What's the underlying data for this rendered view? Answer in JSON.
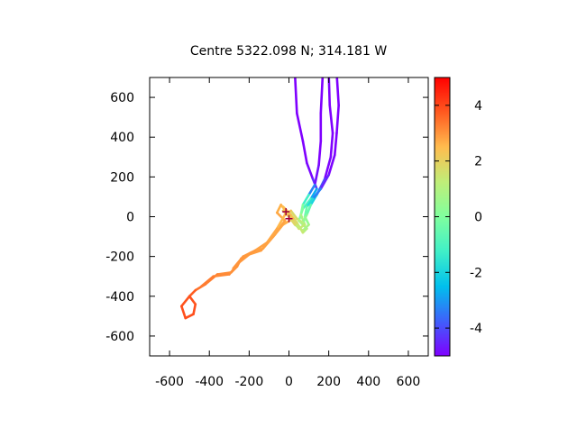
{
  "chart_data": {
    "type": "line",
    "title": "Centre 5322.098 N; 314.181  W",
    "xlabel": "",
    "ylabel": "",
    "xlim": [
      -700,
      700
    ],
    "ylim": [
      -700,
      700
    ],
    "xticks": [
      "-600",
      "-400",
      "-200",
      "0",
      "200",
      "400",
      "600"
    ],
    "yticks": [
      "-600",
      "-400",
      "-200",
      "0",
      "200",
      "400",
      "600"
    ],
    "grid": false,
    "legend": "none",
    "colorbar": {
      "range": [
        -5,
        5
      ],
      "ticks": [
        "-4",
        "-2",
        "0",
        "2",
        "4"
      ],
      "palette": [
        "#7f00ff",
        "#3f60fb",
        "#00c0ed",
        "#40f0c8",
        "#80ff9e",
        "#c0ee78",
        "#ffbc4e",
        "#ff5a20",
        "#ff0000"
      ]
    },
    "markers": [
      {
        "x": -15,
        "y": 25,
        "color": "#a0003c"
      },
      {
        "x": 0,
        "y": -10,
        "color": "#a0003c"
      }
    ],
    "series": [
      {
        "points": [
          [
            30,
            720,
            -5
          ],
          [
            40,
            520,
            -5
          ],
          [
            70,
            380,
            -5
          ],
          [
            90,
            270,
            -5
          ],
          [
            120,
            190,
            -4.8
          ],
          [
            140,
            140,
            -4
          ],
          [
            110,
            90,
            -1.5
          ],
          [
            70,
            40,
            -0.5
          ],
          [
            50,
            -20,
            0.5
          ],
          [
            90,
            -60,
            1
          ],
          [
            70,
            -80,
            1.2
          ],
          [
            40,
            -30,
            1.6
          ],
          [
            10,
            10,
            2
          ],
          [
            -30,
            50,
            2.3
          ],
          [
            -10,
            30,
            2.5
          ],
          [
            20,
            -10,
            2.6
          ],
          [
            -30,
            -40,
            2.7
          ],
          [
            -70,
            -90,
            2.8
          ],
          [
            -130,
            -160,
            2.8
          ],
          [
            -190,
            -180,
            2.9
          ],
          [
            -240,
            -210,
            2.9
          ],
          [
            -260,
            -250,
            3
          ],
          [
            -290,
            -280,
            3
          ],
          [
            -360,
            -290,
            3.2
          ],
          [
            -420,
            -340,
            3.3
          ],
          [
            -470,
            -370,
            3.6
          ],
          [
            -500,
            -400,
            3.8
          ],
          [
            -540,
            -450,
            3.9
          ],
          [
            -520,
            -510,
            3.9
          ],
          [
            -480,
            -490,
            3.9
          ],
          [
            -470,
            -440,
            3.9
          ],
          [
            -500,
            -400,
            3.8
          ]
        ]
      },
      {
        "points": [
          [
            170,
            720,
            -5
          ],
          [
            160,
            520,
            -5
          ],
          [
            160,
            380,
            -5
          ],
          [
            150,
            260,
            -5
          ],
          [
            130,
            160,
            -4.6
          ],
          [
            100,
            110,
            -2
          ],
          [
            70,
            60,
            -0.5
          ],
          [
            60,
            10,
            0.5
          ],
          [
            80,
            -40,
            1.2
          ],
          [
            50,
            -60,
            1.5
          ],
          [
            20,
            -20,
            2
          ],
          [
            -10,
            20,
            2.4
          ],
          [
            -40,
            60,
            2.6
          ],
          [
            -60,
            20,
            2.7
          ],
          [
            -20,
            -20,
            2.8
          ],
          [
            -80,
            -100,
            2.8
          ],
          [
            -140,
            -170,
            2.9
          ],
          [
            -200,
            -190,
            2.9
          ],
          [
            -250,
            -230,
            3
          ],
          [
            -300,
            -290,
            3.1
          ],
          [
            -380,
            -300,
            3.2
          ],
          [
            -440,
            -350,
            3.4
          ]
        ]
      },
      {
        "points": [
          [
            200,
            720,
            -5
          ],
          [
            205,
            560,
            -5
          ],
          [
            220,
            420,
            -5
          ],
          [
            210,
            300,
            -5
          ],
          [
            180,
            190,
            -4.9
          ],
          [
            140,
            110,
            -3
          ],
          [
            110,
            60,
            -1
          ],
          [
            90,
            10,
            0
          ],
          [
            70,
            -30,
            0.8
          ],
          [
            40,
            -10,
            1.5
          ],
          [
            10,
            30,
            2
          ],
          [
            -20,
            10,
            2.4
          ],
          [
            -60,
            -60,
            2.7
          ],
          [
            -110,
            -130,
            2.8
          ],
          [
            -170,
            -170,
            2.9
          ],
          [
            -230,
            -200,
            3
          ],
          [
            -280,
            -260,
            3
          ]
        ]
      },
      {
        "points": [
          [
            240,
            720,
            -5
          ],
          [
            250,
            560,
            -5
          ],
          [
            240,
            420,
            -5
          ],
          [
            230,
            310,
            -5
          ],
          [
            200,
            210,
            -4.9
          ],
          [
            160,
            140,
            -4.2
          ],
          [
            120,
            90,
            -2.5
          ],
          [
            90,
            50,
            -1
          ],
          [
            80,
            0,
            0.2
          ],
          [
            100,
            -40,
            0.6
          ],
          [
            70,
            -70,
            1
          ],
          [
            30,
            -40,
            1.6
          ],
          [
            0,
            0,
            2.1
          ],
          [
            -30,
            30,
            2.4
          ]
        ]
      }
    ]
  }
}
